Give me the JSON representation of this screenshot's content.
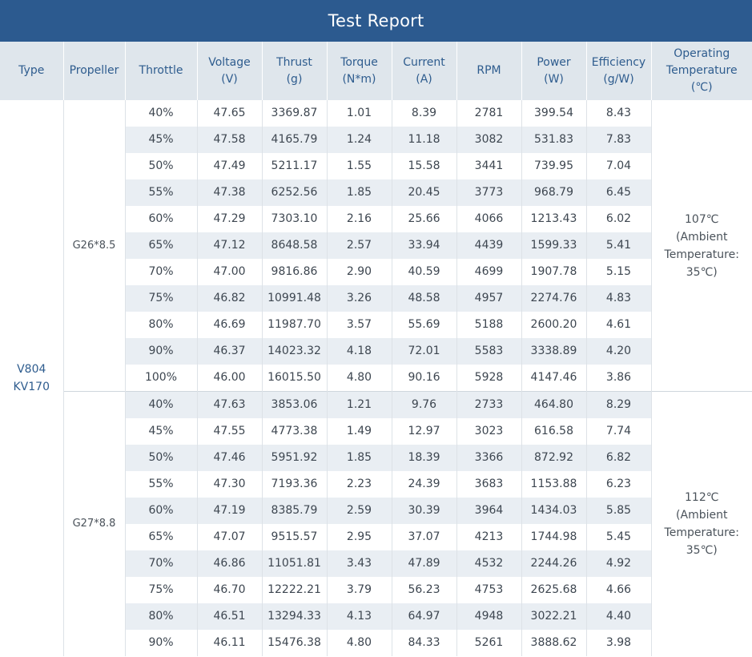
{
  "title": "Test Report",
  "headers": {
    "type": "Type",
    "propeller": "Propeller",
    "throttle": "Throttle",
    "voltage": [
      "Voltage",
      "(V)"
    ],
    "thrust": [
      "Thrust",
      "(g)"
    ],
    "torque": [
      "Torque",
      "(N*m)"
    ],
    "current": [
      "Current",
      "(A)"
    ],
    "rpm": "RPM",
    "power": [
      "Power",
      "(W)"
    ],
    "efficiency": [
      "Efficiency",
      "(g/W)"
    ],
    "temperature": [
      "Operating",
      "Temperature",
      "(℃)"
    ]
  },
  "type_label": [
    "V804",
    "KV170"
  ],
  "groups": [
    {
      "propeller": "G26*8.5",
      "temperature": [
        "107℃",
        "(Ambient",
        "Temperature:",
        "35℃)"
      ],
      "rows": [
        [
          "40%",
          "47.65",
          "3369.87",
          "1.01",
          "8.39",
          "2781",
          "399.54",
          "8.43"
        ],
        [
          "45%",
          "47.58",
          "4165.79",
          "1.24",
          "11.18",
          "3082",
          "531.83",
          "7.83"
        ],
        [
          "50%",
          "47.49",
          "5211.17",
          "1.55",
          "15.58",
          "3441",
          "739.95",
          "7.04"
        ],
        [
          "55%",
          "47.38",
          "6252.56",
          "1.85",
          "20.45",
          "3773",
          "968.79",
          "6.45"
        ],
        [
          "60%",
          "47.29",
          "7303.10",
          "2.16",
          "25.66",
          "4066",
          "1213.43",
          "6.02"
        ],
        [
          "65%",
          "47.12",
          "8648.58",
          "2.57",
          "33.94",
          "4439",
          "1599.33",
          "5.41"
        ],
        [
          "70%",
          "47.00",
          "9816.86",
          "2.90",
          "40.59",
          "4699",
          "1907.78",
          "5.15"
        ],
        [
          "75%",
          "46.82",
          "10991.48",
          "3.26",
          "48.58",
          "4957",
          "2274.76",
          "4.83"
        ],
        [
          "80%",
          "46.69",
          "11987.70",
          "3.57",
          "55.69",
          "5188",
          "2600.20",
          "4.61"
        ],
        [
          "90%",
          "46.37",
          "14023.32",
          "4.18",
          "72.01",
          "5583",
          "3338.89",
          "4.20"
        ],
        [
          "100%",
          "46.00",
          "16015.50",
          "4.80",
          "90.16",
          "5928",
          "4147.46",
          "3.86"
        ]
      ]
    },
    {
      "propeller": "G27*8.8",
      "temperature": [
        "112℃",
        "(Ambient",
        "Temperature:",
        "35℃)"
      ],
      "rows": [
        [
          "40%",
          "47.63",
          "3853.06",
          "1.21",
          "9.76",
          "2733",
          "464.80",
          "8.29"
        ],
        [
          "45%",
          "47.55",
          "4773.38",
          "1.49",
          "12.97",
          "3023",
          "616.58",
          "7.74"
        ],
        [
          "50%",
          "47.46",
          "5951.92",
          "1.85",
          "18.39",
          "3366",
          "872.92",
          "6.82"
        ],
        [
          "55%",
          "47.30",
          "7193.36",
          "2.23",
          "24.39",
          "3683",
          "1153.88",
          "6.23"
        ],
        [
          "60%",
          "47.19",
          "8385.79",
          "2.59",
          "30.39",
          "3964",
          "1434.03",
          "5.85"
        ],
        [
          "65%",
          "47.07",
          "9515.57",
          "2.95",
          "37.07",
          "4213",
          "1744.98",
          "5.45"
        ],
        [
          "70%",
          "46.86",
          "11051.81",
          "3.43",
          "47.89",
          "4532",
          "2244.26",
          "4.92"
        ],
        [
          "75%",
          "46.70",
          "12222.21",
          "3.79",
          "56.23",
          "4753",
          "2625.68",
          "4.66"
        ],
        [
          "80%",
          "46.51",
          "13294.33",
          "4.13",
          "64.97",
          "4948",
          "3022.21",
          "4.40"
        ],
        [
          "90%",
          "46.11",
          "15476.38",
          "4.80",
          "84.33",
          "5261",
          "3888.62",
          "3.98"
        ]
      ]
    }
  ]
}
